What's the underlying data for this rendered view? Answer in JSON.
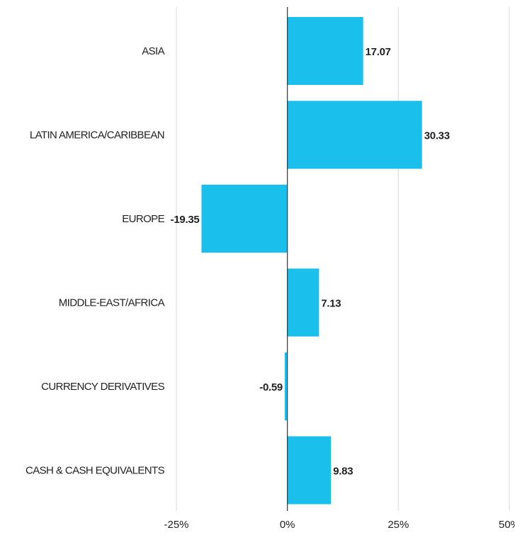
{
  "chart_data": {
    "type": "bar",
    "orientation": "horizontal",
    "categories": [
      "ASIA",
      "LATIN AMERICA/CARIBBEAN",
      "EUROPE",
      "MIDDLE-EAST/AFRICA",
      "CURRENCY DERIVATIVES",
      "CASH & CASH EQUIVALENTS"
    ],
    "values": [
      17.07,
      30.33,
      -19.35,
      7.13,
      -0.59,
      9.83
    ],
    "value_labels": [
      "17.07",
      "30.33",
      "-19.35",
      "7.13",
      "-0.59",
      "9.83"
    ],
    "xlim": [
      -25,
      50
    ],
    "x_ticks": [
      -25,
      0,
      25,
      50
    ],
    "x_tick_labels": [
      "-25%",
      "0%",
      "25%",
      "50%"
    ],
    "grid": true,
    "title": "",
    "xlabel": "",
    "ylabel": "",
    "colors": {
      "bar": "#1bbfeb",
      "grid": "#d9d9d9",
      "zero_line": "#333333",
      "text": "#222222"
    }
  }
}
